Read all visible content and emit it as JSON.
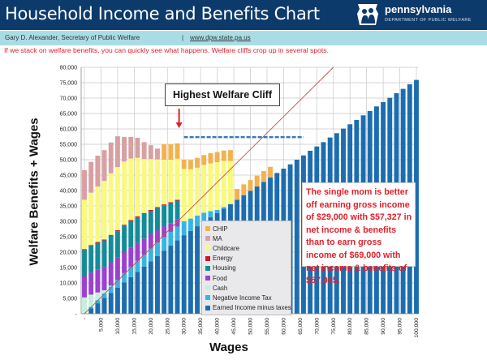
{
  "header": {
    "title": "Household Income and Benefits Chart",
    "logo_name": "pennsylvania",
    "logo_sub": "DEPARTMENT OF PUBLIC WELFARE",
    "logo_icon": "keystone-family-icon"
  },
  "subheader": {
    "author": "Gary D. Alexander,  Secretary of Public Welfare",
    "separator": "|",
    "url": "www.dpw.state.pa.us"
  },
  "note": "If we stack on welfare benefits, you can quickly see what happens. Welfare cliffs crop up in several spots.",
  "chart_data": {
    "type": "bar",
    "stacked": true,
    "xlabel": "Wages",
    "ylabel": "Welfare Benefits + Wages",
    "ylim": [
      0,
      80000
    ],
    "xlim": [
      0,
      100000
    ],
    "grid": true,
    "legend_placement": "bottom-center",
    "y_ticks": [
      "-",
      "5,000",
      "10,000",
      "15,000",
      "20,000",
      "25,000",
      "30,000",
      "35,000",
      "40,000",
      "45,000",
      "50,000",
      "55,000",
      "60,000",
      "65,000",
      "70,000",
      "75,000",
      "80,000"
    ],
    "x_ticks": [
      "-",
      "5,000",
      "10,000",
      "15,000",
      "20,000",
      "25,000",
      "30,000",
      "35,000",
      "40,000",
      "45,000",
      "50,000",
      "55,000",
      "60,000",
      "65,000",
      "70,000",
      "75,000",
      "80,000",
      "85,000",
      "90,000",
      "95,000",
      "100,000"
    ],
    "x": [
      0,
      2000,
      4000,
      6000,
      8000,
      10000,
      12000,
      14000,
      16000,
      18000,
      20000,
      22000,
      24000,
      26000,
      28000,
      30000,
      32000,
      34000,
      36000,
      38000,
      40000,
      42000,
      44000,
      46000,
      48000,
      50000,
      52000,
      54000,
      56000,
      58000,
      60000,
      62000,
      64000,
      66000,
      68000,
      70000,
      72000,
      74000,
      76000,
      78000,
      80000,
      82000,
      84000,
      86000,
      88000,
      90000,
      92000,
      94000,
      96000,
      98000,
      100000
    ],
    "series": [
      {
        "name": "Earned Income minus taxes",
        "color": "#1c6db0",
        "values": [
          0,
          1700,
          3400,
          5100,
          6800,
          8500,
          10200,
          11900,
          13600,
          15300,
          17000,
          18700,
          20400,
          22100,
          23800,
          25500,
          26900,
          28400,
          29800,
          31300,
          32700,
          34100,
          35600,
          37000,
          38500,
          39900,
          41300,
          42800,
          44200,
          45700,
          47100,
          48500,
          50000,
          51400,
          52900,
          54300,
          55700,
          57200,
          58600,
          60100,
          61500,
          62900,
          64400,
          65800,
          67300,
          68700,
          70100,
          71600,
          73000,
          74500,
          75900
        ]
      },
      {
        "name": "Negative Income Tax",
        "color": "#35b5e5",
        "values": [
          0,
          500,
          1000,
          1500,
          2000,
          2500,
          3000,
          3300,
          3600,
          3900,
          4200,
          4400,
          4500,
          4500,
          4500,
          4500,
          4000,
          3500,
          3000,
          2000,
          1000,
          500,
          0,
          0,
          0,
          0,
          0,
          0,
          0,
          0,
          0,
          0,
          0,
          0,
          0,
          0,
          0,
          0,
          0,
          0,
          0,
          0,
          0,
          0,
          0,
          0,
          0,
          0,
          0,
          0,
          0
        ]
      },
      {
        "name": "Cash",
        "color": "#c4efdb",
        "values": [
          5300,
          4000,
          2500,
          1000,
          300,
          0,
          0,
          0,
          0,
          0,
          0,
          0,
          0,
          0,
          0,
          0,
          0,
          0,
          0,
          0,
          0,
          0,
          0,
          0,
          0,
          0,
          0,
          0,
          0,
          0,
          0,
          0,
          0,
          0,
          0,
          0,
          0,
          0,
          0,
          0,
          0,
          0,
          0,
          0,
          0,
          0,
          0,
          0,
          0,
          0,
          0
        ]
      },
      {
        "name": "Food",
        "color": "#9b40d0",
        "values": [
          6800,
          7200,
          7500,
          7600,
          7600,
          7200,
          6800,
          6300,
          5800,
          5200,
          4600,
          4000,
          3400,
          2800,
          2300,
          0,
          0,
          0,
          0,
          0,
          0,
          0,
          0,
          0,
          0,
          0,
          0,
          0,
          0,
          0,
          0,
          0,
          0,
          0,
          0,
          0,
          0,
          0,
          0,
          0,
          0,
          0,
          0,
          0,
          0,
          0,
          0,
          0,
          0,
          0,
          0
        ]
      },
      {
        "name": "Housing",
        "color": "#138c99",
        "values": [
          8600,
          8600,
          8600,
          8600,
          8600,
          8600,
          8600,
          8600,
          8300,
          8000,
          7600,
          7200,
          6900,
          6500,
          6100,
          0,
          0,
          0,
          0,
          0,
          0,
          0,
          0,
          0,
          0,
          0,
          0,
          0,
          0,
          0,
          0,
          0,
          0,
          0,
          0,
          0,
          0,
          0,
          0,
          0,
          0,
          0,
          0,
          0,
          0,
          0,
          0,
          0,
          0,
          0,
          0
        ]
      },
      {
        "name": "Energy",
        "color": "#d6141e",
        "values": [
          300,
          300,
          300,
          300,
          300,
          300,
          300,
          300,
          300,
          300,
          300,
          300,
          300,
          300,
          300,
          0,
          0,
          0,
          0,
          0,
          0,
          0,
          0,
          0,
          0,
          0,
          0,
          0,
          0,
          0,
          0,
          0,
          0,
          0,
          0,
          0,
          0,
          0,
          0,
          0,
          0,
          0,
          0,
          0,
          0,
          0,
          0,
          0,
          0,
          0,
          0
        ]
      },
      {
        "name": "Childcare",
        "color": "#f9f97c",
        "values": [
          16000,
          17000,
          18000,
          19000,
          20000,
          20500,
          20500,
          20000,
          19000,
          17500,
          16500,
          15500,
          14500,
          13800,
          13300,
          17000,
          16000,
          15500,
          15500,
          15500,
          15500,
          15000,
          14000,
          0,
          0,
          0,
          0,
          0,
          0,
          0,
          0,
          0,
          0,
          0,
          0,
          0,
          0,
          0,
          0,
          0,
          0,
          0,
          0,
          0,
          0,
          0,
          0,
          0,
          0,
          0,
          0
        ]
      },
      {
        "name": "MA",
        "color": "#d8a0a2",
        "values": [
          9600,
          10000,
          10000,
          10000,
          10000,
          10000,
          8000,
          7000,
          6500,
          5500,
          4500,
          3500,
          0,
          0,
          0,
          0,
          0,
          0,
          0,
          0,
          0,
          0,
          0,
          0,
          0,
          0,
          0,
          0,
          0,
          0,
          0,
          0,
          0,
          0,
          0,
          0,
          0,
          0,
          0,
          0,
          0,
          0,
          0,
          0,
          0,
          0,
          0,
          0,
          0,
          0,
          0
        ]
      },
      {
        "name": "CHIP",
        "color": "#f2b24f",
        "values": [
          0,
          0,
          0,
          0,
          0,
          0,
          0,
          0,
          0,
          0,
          0,
          0,
          5000,
          5000,
          5000,
          3000,
          3000,
          3200,
          3200,
          3300,
          3300,
          3400,
          3500,
          3500,
          3500,
          3500,
          3500,
          3500,
          3500,
          0,
          0,
          0,
          0,
          0,
          0,
          0,
          0,
          0,
          0,
          0,
          0,
          0,
          0,
          0,
          0,
          0,
          0,
          0,
          0,
          0,
          0
        ]
      }
    ],
    "legend_order": [
      "CHIP",
      "MA",
      "Childcare",
      "Energy",
      "Housing",
      "Food",
      "Cash",
      "Negative Income Tax",
      "Earned Income minus taxes"
    ],
    "annotations": {
      "cliff_label": "Highest Welfare Cliff",
      "cliff_wage": 29000,
      "cliff_level": 57327,
      "cliff_dashed_end_wage": 66000,
      "reference_line": [
        [
          0,
          0
        ],
        [
          75000,
          80000
        ]
      ],
      "callout": "The single mom is better off earning gross income of $29,000 with $57,327 in net income & benefits than to earn gross income of $69,000 with net income & benefits of $57,045."
    }
  }
}
